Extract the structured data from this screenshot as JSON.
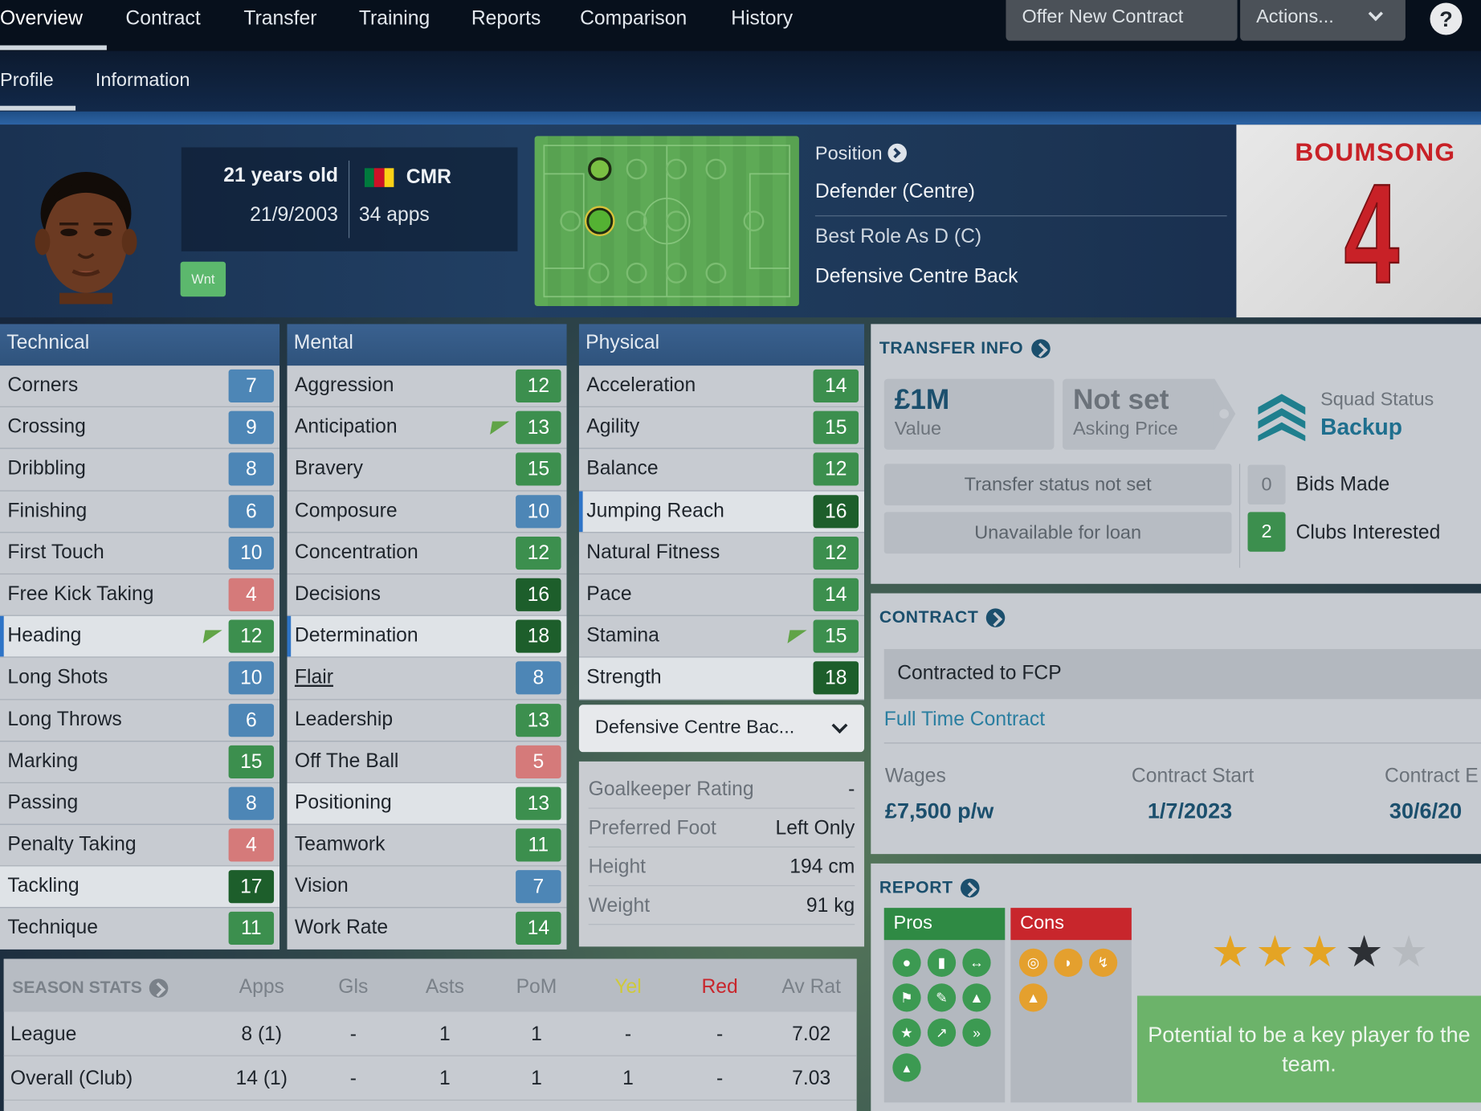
{
  "nav": {
    "tabs": [
      "Overview",
      "Contract",
      "Transfer",
      "Training",
      "Reports",
      "Comparison",
      "History"
    ],
    "offer": "Offer New Contract",
    "actions": "Actions...",
    "help": "?"
  },
  "subnav": {
    "tabs": [
      "Profile",
      "Information"
    ]
  },
  "player": {
    "age": "21 years old",
    "dob": "21/9/2003",
    "nation": "CMR",
    "apps": "34 apps",
    "badge": "Wnt",
    "shirt_name": "BOUMSONG",
    "shirt_number": "4"
  },
  "position": {
    "label": "Position",
    "value": "Defender (Centre)",
    "best_role": "Best Role As D (C)",
    "role": "Defensive Centre Back"
  },
  "technical": {
    "title": "Technical",
    "items": [
      [
        "Corners",
        "7"
      ],
      [
        "Crossing",
        "9"
      ],
      [
        "Dribbling",
        "8"
      ],
      [
        "Finishing",
        "6"
      ],
      [
        "First Touch",
        "10"
      ],
      [
        "Free Kick Taking",
        "4"
      ],
      [
        "Heading",
        "12"
      ],
      [
        "Long Shots",
        "10"
      ],
      [
        "Long Throws",
        "6"
      ],
      [
        "Marking",
        "15"
      ],
      [
        "Passing",
        "8"
      ],
      [
        "Penalty Taking",
        "4"
      ],
      [
        "Tackling",
        "17"
      ],
      [
        "Technique",
        "11"
      ]
    ]
  },
  "mental": {
    "title": "Mental",
    "items": [
      [
        "Aggression",
        "12"
      ],
      [
        "Anticipation",
        "13"
      ],
      [
        "Bravery",
        "15"
      ],
      [
        "Composure",
        "10"
      ],
      [
        "Concentration",
        "12"
      ],
      [
        "Decisions",
        "16"
      ],
      [
        "Determination",
        "18"
      ],
      [
        "Flair",
        "8"
      ],
      [
        "Leadership",
        "13"
      ],
      [
        "Off The Ball",
        "5"
      ],
      [
        "Positioning",
        "13"
      ],
      [
        "Teamwork",
        "11"
      ],
      [
        "Vision",
        "7"
      ],
      [
        "Work Rate",
        "14"
      ]
    ]
  },
  "physical": {
    "title": "Physical",
    "items": [
      [
        "Acceleration",
        "14"
      ],
      [
        "Agility",
        "15"
      ],
      [
        "Balance",
        "12"
      ],
      [
        "Jumping Reach",
        "16"
      ],
      [
        "Natural Fitness",
        "12"
      ],
      [
        "Pace",
        "14"
      ],
      [
        "Stamina",
        "15"
      ],
      [
        "Strength",
        "18"
      ]
    ]
  },
  "role_select": "Defensive Centre Bac...",
  "phys_info": [
    [
      "Goalkeeper Rating",
      "-"
    ],
    [
      "Preferred Foot",
      "Left Only"
    ],
    [
      "Height",
      "194 cm"
    ],
    [
      "Weight",
      "91 kg"
    ]
  ],
  "transfer": {
    "title": "TRANSFER INFO",
    "value": "£1M",
    "value_label": "Value",
    "asking": "Not set",
    "asking_label": "Asking Price",
    "squad_label": "Squad Status",
    "squad": "Backup",
    "status": "Transfer status not set",
    "loan": "Unavailable for loan",
    "bids": "0",
    "bids_label": "Bids Made",
    "clubs": "2",
    "clubs_label": "Clubs Interested"
  },
  "contract": {
    "title": "CONTRACT",
    "club": "Contracted to FCP",
    "type": "Full Time Contract",
    "wages_label": "Wages",
    "wages": "£7,500 p/w",
    "start_label": "Contract Start",
    "start": "1/7/2023",
    "end_label": "Contract E",
    "end": "30/6/20"
  },
  "report": {
    "title": "REPORT",
    "pros": "Pros",
    "cons": "Cons",
    "potential": "Potential to be a key player fo the team.",
    "stars": 3
  },
  "season": {
    "title": "SEASON STATS",
    "cols": [
      "Apps",
      "Gls",
      "Asts",
      "PoM",
      "Yel",
      "Red",
      "Av Rat"
    ],
    "rows": [
      [
        "League",
        "8 (1)",
        "-",
        "1",
        "1",
        "-",
        "-",
        "7.02"
      ],
      [
        "Overall (Club)",
        "14 (1)",
        "-",
        "1",
        "1",
        "1",
        "-",
        "7.03"
      ]
    ]
  },
  "colors": {
    "attr_high": "#1d5e2b",
    "attr_good": "#3c8f4e",
    "attr_mid": "#4d86b6",
    "attr_low": "#d57a7a"
  }
}
